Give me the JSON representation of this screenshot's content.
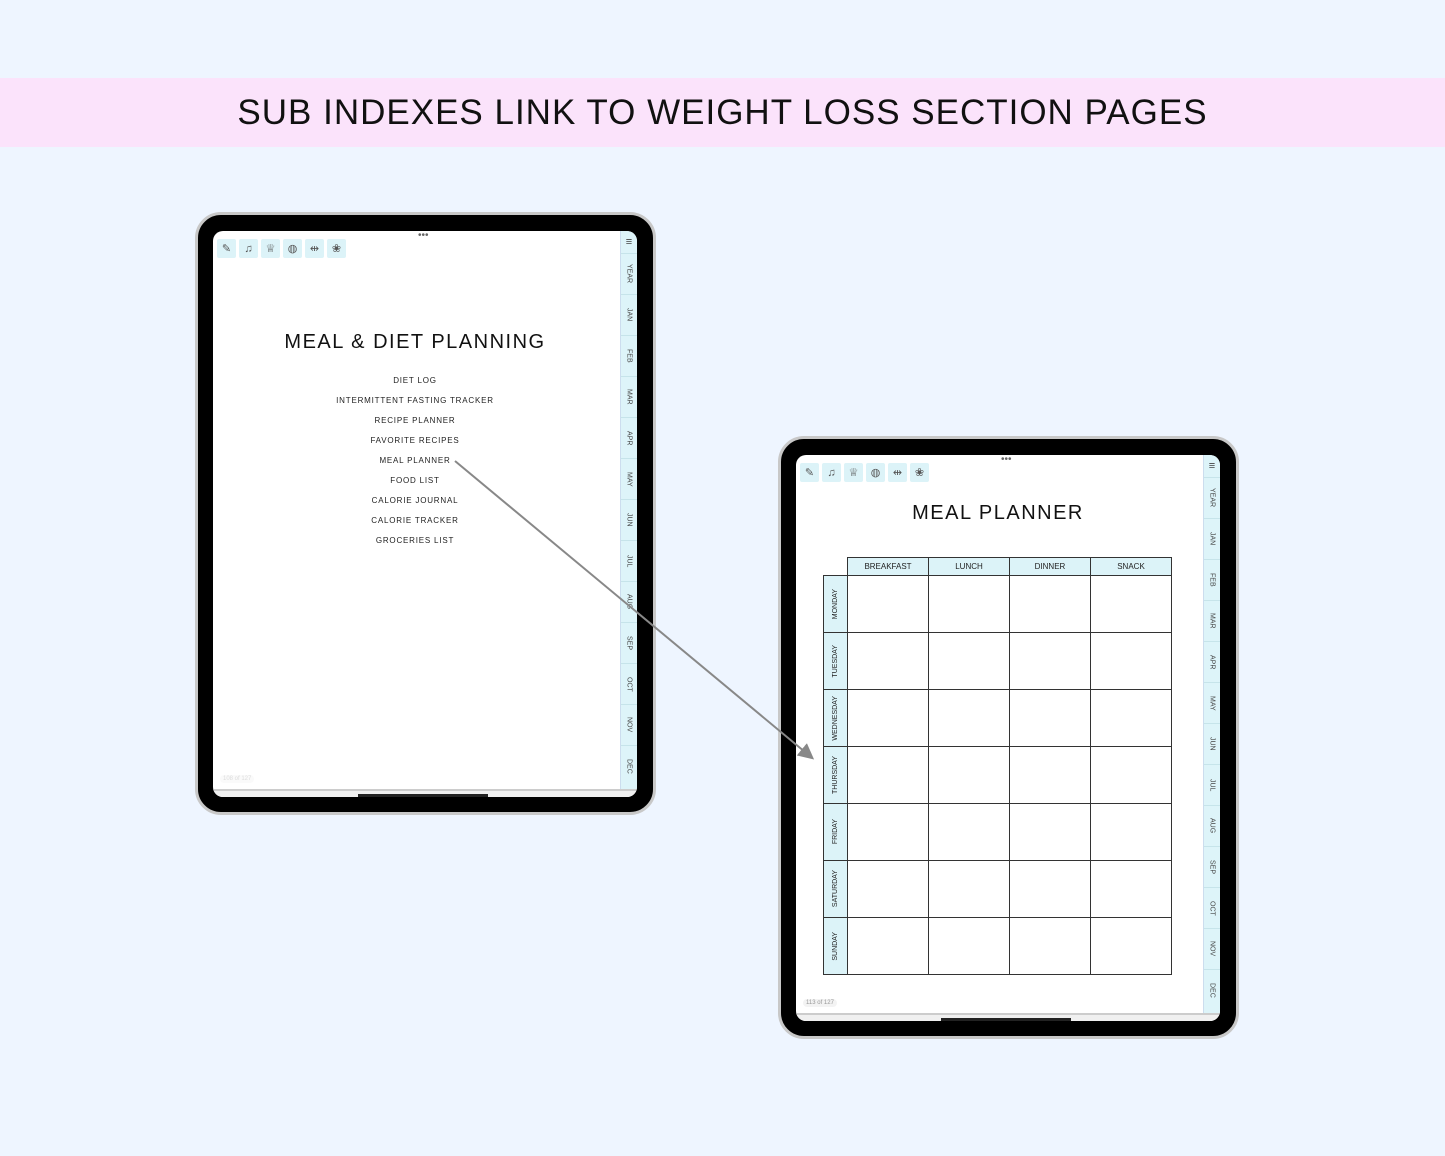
{
  "banner": "SUB INDEXES LINK TO WEIGHT LOSS SECTION PAGES",
  "toolbar_icons": [
    "notes-icon",
    "bell-icon",
    "trophy-icon",
    "globe-icon",
    "dumbbell-icon",
    "lotus-icon"
  ],
  "tabs": [
    "YEAR",
    "JAN",
    "FEB",
    "MAR",
    "APR",
    "MAY",
    "JUN",
    "JUL",
    "AUG",
    "SEP",
    "OCT",
    "NOV",
    "DEC"
  ],
  "left": {
    "title": "MEAL & DIET PLANNING",
    "links": [
      "DIET LOG",
      "INTERMITTENT FASTING TRACKER",
      "RECIPE PLANNER",
      "FAVORITE RECIPES",
      "MEAL PLANNER",
      "FOOD LIST",
      "CALORIE JOURNAL",
      "CALORIE TRACKER",
      "GROCERIES LIST"
    ],
    "page": "108 of 127"
  },
  "right": {
    "title": "MEAL PLANNER",
    "columns": [
      "BREAKFAST",
      "LUNCH",
      "DINNER",
      "SNACK"
    ],
    "days": [
      "MONDAY",
      "TUESDAY",
      "WEDNESDAY",
      "THURSDAY",
      "FRIDAY",
      "SATURDAY",
      "SUNDAY"
    ],
    "page": "113 of 127"
  },
  "colors": {
    "background": "#eef5ff",
    "banner": "#fbe3fb",
    "accent": "#dcf3f8"
  }
}
